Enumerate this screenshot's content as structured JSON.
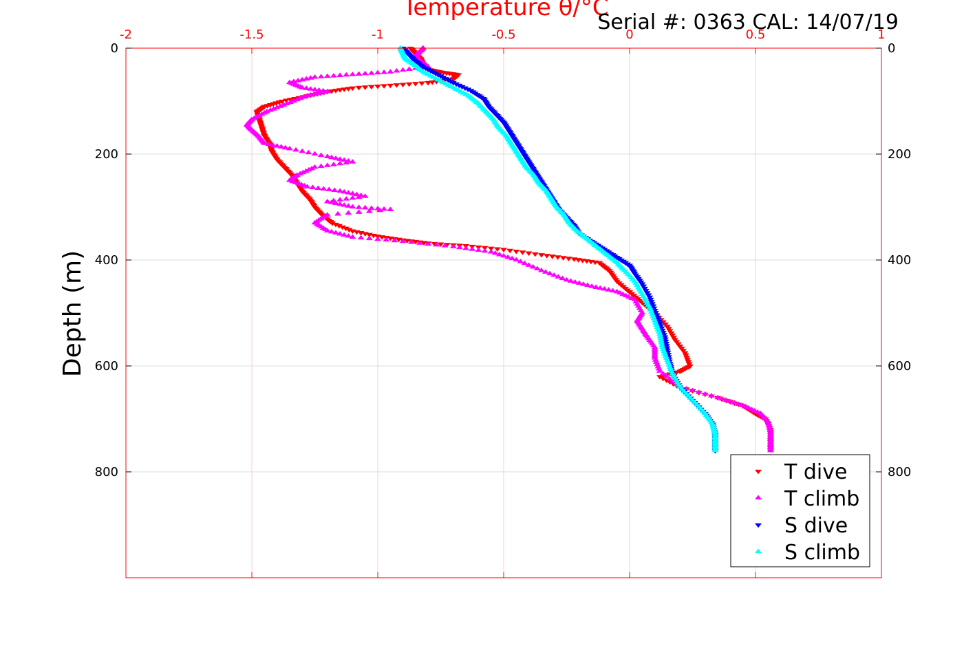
{
  "chart_data": {
    "type": "scatter",
    "title": "Temperature θ/°C",
    "annotation": "Serial #: 0363  CAL: 14/07/19",
    "xlabel": "Temperature θ/°C",
    "ylabel": "Depth (m)",
    "xlim": [
      -2,
      1
    ],
    "ylim": [
      0,
      1000
    ],
    "y_reversed": true,
    "x_axis_position": "top",
    "x_ticks": [
      "-2",
      "-1.5",
      "-1",
      "-0.5",
      "0",
      "0.5",
      "1"
    ],
    "y_ticks": [
      "0",
      "200",
      "400",
      "600",
      "800"
    ],
    "grid": true,
    "legend_position": "bottom-right",
    "series": [
      {
        "name": "T dive",
        "color": "#ff0000",
        "marker": "triangle-down",
        "points": [
          [
            -0.87,
            0
          ],
          [
            -0.85,
            10
          ],
          [
            -0.83,
            20
          ],
          [
            -0.82,
            30
          ],
          [
            -0.8,
            40
          ],
          [
            -0.75,
            45
          ],
          [
            -0.68,
            50
          ],
          [
            -0.7,
            58
          ],
          [
            -0.8,
            65
          ],
          [
            -0.95,
            70
          ],
          [
            -1.1,
            75
          ],
          [
            -1.2,
            82
          ],
          [
            -1.28,
            90
          ],
          [
            -1.38,
            100
          ],
          [
            -1.45,
            110
          ],
          [
            -1.48,
            120
          ],
          [
            -1.47,
            135
          ],
          [
            -1.46,
            150
          ],
          [
            -1.45,
            165
          ],
          [
            -1.43,
            180
          ],
          [
            -1.42,
            195
          ],
          [
            -1.4,
            210
          ],
          [
            -1.37,
            225
          ],
          [
            -1.34,
            240
          ],
          [
            -1.32,
            255
          ],
          [
            -1.3,
            270
          ],
          [
            -1.27,
            285
          ],
          [
            -1.25,
            300
          ],
          [
            -1.22,
            315
          ],
          [
            -1.18,
            330
          ],
          [
            -1.1,
            345
          ],
          [
            -1.0,
            355
          ],
          [
            -0.9,
            362
          ],
          [
            -0.8,
            368
          ],
          [
            -0.65,
            373
          ],
          [
            -0.5,
            380
          ],
          [
            -0.35,
            390
          ],
          [
            -0.22,
            398
          ],
          [
            -0.12,
            405
          ],
          [
            -0.08,
            420
          ],
          [
            -0.05,
            440
          ],
          [
            0.0,
            460
          ],
          [
            0.05,
            480
          ],
          [
            0.1,
            500
          ],
          [
            0.15,
            525
          ],
          [
            0.18,
            550
          ],
          [
            0.22,
            575
          ],
          [
            0.24,
            600
          ],
          [
            0.2,
            610
          ],
          [
            0.12,
            620
          ],
          [
            0.2,
            640
          ],
          [
            0.35,
            660
          ],
          [
            0.45,
            675
          ],
          [
            0.5,
            690
          ],
          [
            0.54,
            700
          ],
          [
            0.56,
            720
          ],
          [
            0.56,
            740
          ],
          [
            0.56,
            758
          ]
        ]
      },
      {
        "name": "T climb",
        "color": "#ff00ff",
        "marker": "triangle-up",
        "points": [
          [
            -0.82,
            0
          ],
          [
            -0.83,
            5
          ],
          [
            -0.85,
            15
          ],
          [
            -0.83,
            25
          ],
          [
            -0.8,
            35
          ],
          [
            -0.95,
            45
          ],
          [
            -1.1,
            50
          ],
          [
            -1.25,
            55
          ],
          [
            -1.35,
            65
          ],
          [
            -1.3,
            75
          ],
          [
            -1.2,
            82
          ],
          [
            -1.28,
            90
          ],
          [
            -1.36,
            105
          ],
          [
            -1.44,
            120
          ],
          [
            -1.5,
            135
          ],
          [
            -1.52,
            145
          ],
          [
            -1.5,
            155
          ],
          [
            -1.47,
            168
          ],
          [
            -1.45,
            180
          ],
          [
            -1.35,
            190
          ],
          [
            -1.2,
            205
          ],
          [
            -1.1,
            215
          ],
          [
            -1.25,
            225
          ],
          [
            -1.32,
            240
          ],
          [
            -1.35,
            250
          ],
          [
            -1.28,
            262
          ],
          [
            -1.15,
            270
          ],
          [
            -1.05,
            280
          ],
          [
            -1.2,
            290
          ],
          [
            -1.1,
            300
          ],
          [
            -0.95,
            305
          ],
          [
            -1.2,
            315
          ],
          [
            -1.25,
            330
          ],
          [
            -1.2,
            345
          ],
          [
            -1.1,
            357
          ],
          [
            -0.9,
            365
          ],
          [
            -0.7,
            375
          ],
          [
            -0.55,
            385
          ],
          [
            -0.45,
            400
          ],
          [
            -0.35,
            420
          ],
          [
            -0.25,
            438
          ],
          [
            -0.15,
            450
          ],
          [
            -0.05,
            460
          ],
          [
            0.02,
            475
          ],
          [
            0.05,
            500
          ],
          [
            0.03,
            515
          ],
          [
            0.05,
            530
          ],
          [
            0.07,
            545
          ],
          [
            0.1,
            565
          ],
          [
            0.1,
            585
          ],
          [
            0.12,
            610
          ],
          [
            0.2,
            640
          ],
          [
            0.35,
            660
          ],
          [
            0.45,
            675
          ],
          [
            0.52,
            690
          ],
          [
            0.55,
            705
          ],
          [
            0.56,
            725
          ],
          [
            0.56,
            745
          ],
          [
            0.56,
            760
          ]
        ]
      },
      {
        "name": "S dive",
        "color": "#0000ff",
        "marker": "triangle-down",
        "points": [
          [
            -0.9,
            0
          ],
          [
            -0.88,
            10
          ],
          [
            -0.86,
            20
          ],
          [
            -0.82,
            35
          ],
          [
            -0.76,
            50
          ],
          [
            -0.7,
            65
          ],
          [
            -0.63,
            80
          ],
          [
            -0.58,
            95
          ],
          [
            -0.56,
            110
          ],
          [
            -0.53,
            125
          ],
          [
            -0.5,
            140
          ],
          [
            -0.48,
            155
          ],
          [
            -0.46,
            170
          ],
          [
            -0.44,
            185
          ],
          [
            -0.42,
            200
          ],
          [
            -0.4,
            215
          ],
          [
            -0.38,
            230
          ],
          [
            -0.36,
            245
          ],
          [
            -0.34,
            260
          ],
          [
            -0.32,
            275
          ],
          [
            -0.3,
            290
          ],
          [
            -0.28,
            305
          ],
          [
            -0.25,
            320
          ],
          [
            -0.22,
            335
          ],
          [
            -0.2,
            350
          ],
          [
            -0.15,
            365
          ],
          [
            -0.1,
            380
          ],
          [
            -0.05,
            395
          ],
          [
            0.0,
            410
          ],
          [
            0.02,
            425
          ],
          [
            0.05,
            445
          ],
          [
            0.08,
            470
          ],
          [
            0.1,
            495
          ],
          [
            0.12,
            520
          ],
          [
            0.14,
            545
          ],
          [
            0.15,
            570
          ],
          [
            0.16,
            595
          ],
          [
            0.17,
            615
          ],
          [
            0.2,
            640
          ],
          [
            0.25,
            665
          ],
          [
            0.3,
            690
          ],
          [
            0.33,
            710
          ],
          [
            0.34,
            730
          ],
          [
            0.34,
            745
          ],
          [
            0.34,
            760
          ]
        ]
      },
      {
        "name": "S climb",
        "color": "#00ffff",
        "marker": "triangle-up",
        "points": [
          [
            -0.91,
            0
          ],
          [
            -0.9,
            10
          ],
          [
            -0.89,
            20
          ],
          [
            -0.86,
            30
          ],
          [
            -0.82,
            45
          ],
          [
            -0.76,
            60
          ],
          [
            -0.7,
            75
          ],
          [
            -0.64,
            90
          ],
          [
            -0.6,
            105
          ],
          [
            -0.57,
            120
          ],
          [
            -0.54,
            135
          ],
          [
            -0.52,
            150
          ],
          [
            -0.49,
            165
          ],
          [
            -0.47,
            180
          ],
          [
            -0.45,
            195
          ],
          [
            -0.43,
            210
          ],
          [
            -0.41,
            225
          ],
          [
            -0.38,
            240
          ],
          [
            -0.36,
            255
          ],
          [
            -0.33,
            270
          ],
          [
            -0.31,
            285
          ],
          [
            -0.29,
            300
          ],
          [
            -0.26,
            315
          ],
          [
            -0.24,
            330
          ],
          [
            -0.21,
            345
          ],
          [
            -0.17,
            360
          ],
          [
            -0.13,
            375
          ],
          [
            -0.09,
            390
          ],
          [
            -0.05,
            405
          ],
          [
            -0.02,
            420
          ],
          [
            0.02,
            440
          ],
          [
            0.05,
            465
          ],
          [
            0.08,
            490
          ],
          [
            0.1,
            515
          ],
          [
            0.12,
            540
          ],
          [
            0.13,
            565
          ],
          [
            0.15,
            590
          ],
          [
            0.17,
            615
          ],
          [
            0.2,
            640
          ],
          [
            0.25,
            665
          ],
          [
            0.3,
            690
          ],
          [
            0.33,
            710
          ],
          [
            0.34,
            730
          ],
          [
            0.34,
            745
          ],
          [
            0.34,
            760
          ]
        ]
      }
    ]
  }
}
